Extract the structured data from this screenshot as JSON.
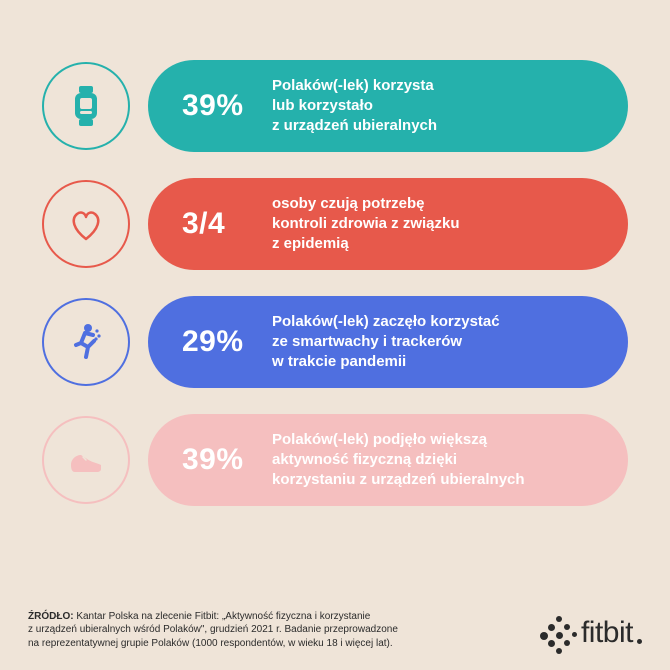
{
  "background_color": "#efe4d8",
  "rows": [
    {
      "icon": "watch",
      "ring_color": "#25b1ac",
      "icon_stroke": "#25b1ac",
      "pill_color": "#25b1ac",
      "stat": "39%",
      "desc": "Polaków(-lek) korzysta\nlub korzystało\nz urządzeń ubieralnych"
    },
    {
      "icon": "heart",
      "ring_color": "#e7594b",
      "icon_stroke": "#e7594b",
      "pill_color": "#e7594b",
      "stat": "3/4",
      "desc": "osoby czują potrzebę\nkontroli zdrowia z związku\nz epidemią"
    },
    {
      "icon": "runner",
      "ring_color": "#4f6fe0",
      "icon_stroke": "#4f6fe0",
      "pill_color": "#4f6fe0",
      "stat": "29%",
      "desc": "Polaków(-lek) zaczęło korzystać\nze smartwachy i trackerów\nw trakcie pandemii"
    },
    {
      "icon": "shoe",
      "ring_color": "#f5bfbf",
      "icon_stroke": "#f5bfbf",
      "pill_color": "#f5bfbf",
      "stat": "39%",
      "desc": "Polaków(-lek) podjęło większą\naktywność fizyczną dzięki\nkorzystaniu z urządzeń ubieralnych"
    }
  ],
  "source_label": "ŹRÓDŁO:",
  "source_text": "Kantar Polska na zlecenie Fitbit: „Aktywność fizyczna i korzystanie\nz urządzeń ubieralnych wśród Polaków\", grudzień 2021 r. Badanie przeprowadzone\nna reprezentatywnej grupie Polaków (1000 respondentów, w wieku 18 i więcej lat).",
  "brand": "fitbit",
  "brand_color": "#2b2b2b",
  "stat_fontsize": 30,
  "desc_fontsize": 15
}
